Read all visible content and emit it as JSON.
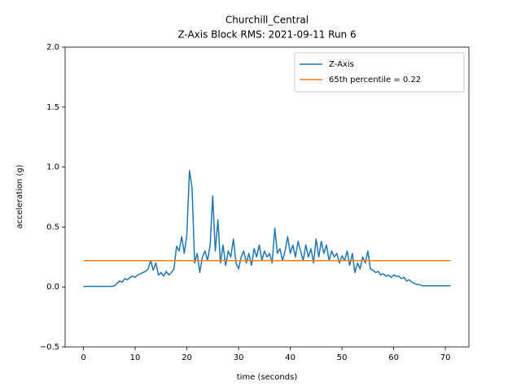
{
  "chart_data": {
    "type": "line",
    "title": "Churchill_Central",
    "subtitle": "Z-Axis Block RMS: 2021-09-11 Run 6",
    "xlabel": "time (seconds)",
    "ylabel": "acceleration (g)",
    "xlim": [
      -3.55,
      74.55
    ],
    "ylim": [
      -0.5,
      2.0
    ],
    "xticks": [
      0,
      10,
      20,
      30,
      40,
      50,
      60,
      70
    ],
    "yticks": [
      {
        "value": -0.5,
        "label": "−0.5"
      },
      {
        "value": 0,
        "label": "0.0"
      },
      {
        "value": 0.5,
        "label": "0.5"
      },
      {
        "value": 1,
        "label": "1.0"
      },
      {
        "value": 1.5,
        "label": "1.5"
      },
      {
        "value": 2,
        "label": "2.0"
      }
    ],
    "grid": false,
    "legend": "upper right",
    "series": [
      {
        "name": "Z-Axis",
        "color": "#1f77b4",
        "x": [
          0,
          0.5,
          1,
          1.5,
          2,
          2.5,
          3,
          3.5,
          4,
          4.5,
          5,
          5.5,
          6,
          6.5,
          7,
          7.5,
          8,
          8.5,
          9,
          9.5,
          10,
          10.5,
          11,
          11.5,
          12,
          12.5,
          13,
          13.5,
          14,
          14.5,
          15,
          15.5,
          16,
          16.5,
          17,
          17.5,
          18,
          18.5,
          19,
          19.5,
          20,
          20.5,
          21,
          21.5,
          22,
          22.5,
          23,
          23.5,
          24,
          24.5,
          25,
          25.5,
          26,
          26.5,
          27,
          27.5,
          28,
          28.5,
          29,
          29.5,
          30,
          30.5,
          31,
          31.5,
          32,
          32.5,
          33,
          33.5,
          34,
          34.5,
          35,
          35.5,
          36,
          36.5,
          37,
          37.5,
          38,
          38.5,
          39,
          39.5,
          40,
          40.5,
          41,
          41.5,
          42,
          42.5,
          43,
          43.5,
          44,
          44.5,
          45,
          45.5,
          46,
          46.5,
          47,
          47.5,
          48,
          48.5,
          49,
          49.5,
          50,
          50.5,
          51,
          51.5,
          52,
          52.5,
          53,
          53.5,
          54,
          54.5,
          55,
          55.5,
          56,
          56.5,
          57,
          57.5,
          58,
          58.5,
          59,
          59.5,
          60,
          60.5,
          61,
          61.5,
          62,
          62.5,
          63,
          63.5,
          64,
          64.5,
          65,
          65.5,
          66,
          66.5,
          67,
          67.5,
          68,
          68.5,
          69,
          69.5,
          70,
          70.5,
          71
        ],
        "values": [
          0.005,
          0.005,
          0.005,
          0.005,
          0.005,
          0.005,
          0.005,
          0.005,
          0.005,
          0.005,
          0.005,
          0.005,
          0.01,
          0.03,
          0.05,
          0.04,
          0.07,
          0.06,
          0.08,
          0.09,
          0.08,
          0.1,
          0.11,
          0.12,
          0.13,
          0.15,
          0.22,
          0.14,
          0.2,
          0.1,
          0.12,
          0.09,
          0.13,
          0.1,
          0.12,
          0.15,
          0.34,
          0.3,
          0.42,
          0.28,
          0.44,
          0.97,
          0.83,
          0.2,
          0.28,
          0.12,
          0.25,
          0.3,
          0.22,
          0.35,
          0.76,
          0.3,
          0.56,
          0.2,
          0.35,
          0.18,
          0.3,
          0.25,
          0.4,
          0.2,
          0.15,
          0.25,
          0.3,
          0.2,
          0.28,
          0.18,
          0.32,
          0.25,
          0.35,
          0.22,
          0.3,
          0.25,
          0.28,
          0.2,
          0.49,
          0.28,
          0.32,
          0.22,
          0.3,
          0.42,
          0.28,
          0.35,
          0.25,
          0.38,
          0.3,
          0.22,
          0.35,
          0.25,
          0.32,
          0.2,
          0.4,
          0.25,
          0.38,
          0.28,
          0.35,
          0.22,
          0.3,
          0.25,
          0.28,
          0.2,
          0.26,
          0.22,
          0.3,
          0.18,
          0.28,
          0.12,
          0.2,
          0.15,
          0.25,
          0.2,
          0.3,
          0.15,
          0.14,
          0.12,
          0.13,
          0.1,
          0.11,
          0.09,
          0.1,
          0.08,
          0.1,
          0.09,
          0.09,
          0.07,
          0.08,
          0.05,
          0.06,
          0.04,
          0.03,
          0.02,
          0.02,
          0.01,
          0.01,
          0.01,
          0.01,
          0.01,
          0.01,
          0.01,
          0.01,
          0.01,
          0.01,
          0.01,
          0.01
        ]
      },
      {
        "name": "65th percentile = 0.22",
        "color": "#ff7f0e",
        "x": [
          0,
          71
        ],
        "values": [
          0.22,
          0.22
        ]
      }
    ]
  }
}
